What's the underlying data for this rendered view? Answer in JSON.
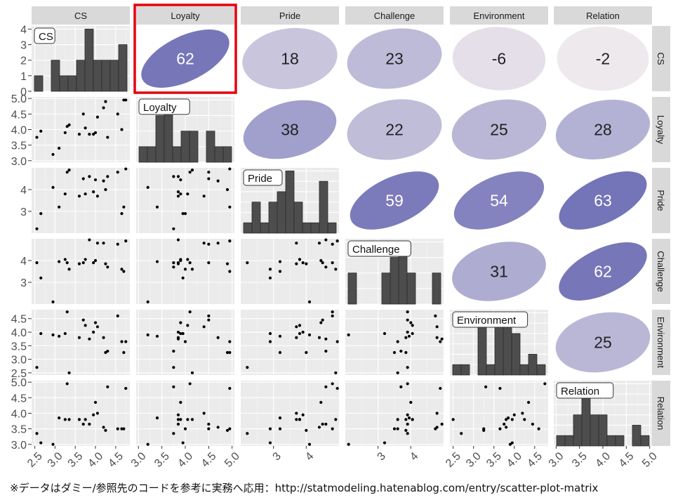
{
  "footnote": "※データはダミー/参照先のコードを参考に実務へ応用：http://statmodeling.hatenablog.com/entry/scatter-plot-matrix",
  "colors": {
    "panel_bg": "#ebebeb",
    "grid_major": "#ffffff",
    "strip_bg": "#d9d9d9",
    "bar_fill": "#4d4d4d",
    "point": "#000000",
    "ellipse_low": "#f5f0f0",
    "ellipse_high": "#7474b8",
    "highlight": "#e5000d"
  },
  "chart_data": {
    "type": "scatter",
    "variables": [
      "CS",
      "Loyalty",
      "Pride",
      "Challenge",
      "Environment",
      "Relation"
    ],
    "highlighted_cell": {
      "row": "CS",
      "col": "Loyalty"
    },
    "correlations": [
      {
        "row": "CS",
        "col": "Loyalty",
        "value": 62
      },
      {
        "row": "CS",
        "col": "Pride",
        "value": 18
      },
      {
        "row": "CS",
        "col": "Challenge",
        "value": 23
      },
      {
        "row": "CS",
        "col": "Environment",
        "value": -6
      },
      {
        "row": "CS",
        "col": "Relation",
        "value": -2
      },
      {
        "row": "Loyalty",
        "col": "Pride",
        "value": 38
      },
      {
        "row": "Loyalty",
        "col": "Challenge",
        "value": 22
      },
      {
        "row": "Loyalty",
        "col": "Environment",
        "value": 25
      },
      {
        "row": "Loyalty",
        "col": "Relation",
        "value": 28
      },
      {
        "row": "Pride",
        "col": "Challenge",
        "value": 59
      },
      {
        "row": "Pride",
        "col": "Environment",
        "value": 54
      },
      {
        "row": "Pride",
        "col": "Relation",
        "value": 63
      },
      {
        "row": "Challenge",
        "col": "Environment",
        "value": 31
      },
      {
        "row": "Challenge",
        "col": "Relation",
        "value": 62
      },
      {
        "row": "Environment",
        "col": "Relation",
        "value": 25
      }
    ],
    "axes": {
      "CS": {
        "range": [
          2.42,
          4.85
        ],
        "ticks": [
          "2.5",
          "3.0",
          "3.5",
          "4.0",
          "4.5"
        ]
      },
      "Loyalty": {
        "range": [
          2.95,
          5.05
        ],
        "ticks": [
          "3.0",
          "3.5",
          "4.0",
          "4.5",
          "5.0"
        ]
      },
      "Pride": {
        "range": [
          2.0,
          5.0
        ],
        "ticks": [
          "3",
          "4"
        ]
      },
      "Challenge": {
        "range": [
          2.0,
          5.0
        ],
        "ticks": [
          "3",
          "4"
        ]
      },
      "Environment": {
        "range": [
          2.42,
          4.83
        ],
        "ticks": [
          "2.5",
          "3.0",
          "3.5",
          "4.0",
          "4.5"
        ]
      },
      "Relation": {
        "range": [
          2.95,
          5.05
        ],
        "ticks": [
          "3.0",
          "3.5",
          "4.0",
          "4.5",
          "5.0"
        ]
      }
    },
    "histograms": {
      "CS": {
        "y_ticks": [
          "0",
          "1",
          "2",
          "3",
          "4"
        ],
        "y_range": [
          0,
          4.2
        ],
        "counts": [
          1,
          0,
          2,
          1,
          1,
          2,
          4,
          2,
          2,
          2,
          3
        ]
      },
      "Loyalty": {
        "counts": [
          1,
          1,
          3,
          4,
          1,
          2,
          2,
          0,
          2,
          1,
          1
        ]
      },
      "Pride": {
        "counts": [
          1,
          3,
          1,
          3,
          4,
          6,
          3,
          1,
          1,
          5,
          1
        ]
      },
      "Challenge": {
        "counts": [
          2,
          0,
          0,
          0,
          2,
          3,
          4,
          2,
          0,
          0,
          2
        ]
      },
      "Environment": {
        "counts": [
          1,
          1,
          0,
          5,
          1,
          5,
          6,
          4,
          1,
          2,
          1
        ]
      },
      "Relation": {
        "counts": [
          1,
          1,
          3,
          6,
          3,
          3,
          1,
          1,
          0,
          2,
          1
        ]
      }
    },
    "observations": {
      "CS": [
        2.55,
        2.65,
        2.95,
        3.1,
        3.25,
        3.3,
        3.35,
        3.6,
        3.7,
        3.75,
        3.85,
        3.95,
        4.0,
        4.05,
        4.2,
        4.25,
        4.3,
        4.55,
        4.65,
        4.7,
        4.75
      ],
      "Loyalty": [
        3.75,
        3.95,
        3.2,
        3.4,
        3.9,
        4.1,
        4.15,
        3.85,
        4.5,
        4.05,
        3.85,
        3.85,
        3.9,
        4.4,
        4.7,
        4.9,
        3.75,
        4.5,
        4.0,
        4.95,
        4.95
      ],
      "Pride": [
        2.2,
        2.9,
        4.1,
        3.2,
        3.8,
        4.8,
        4.9,
        3.7,
        4.5,
        3.8,
        4.6,
        3.9,
        4.45,
        3.7,
        4.4,
        4.0,
        4.6,
        4.8,
        2.9,
        3.2,
        4.95
      ],
      "Challenge": [
        3.9,
        3.2,
        2.1,
        3.95,
        4.05,
        3.9,
        3.6,
        3.85,
        3.9,
        4.05,
        4.95,
        3.9,
        4.0,
        4.8,
        4.8,
        3.85,
        3.7,
        4.75,
        3.6,
        3.5,
        4.9
      ],
      "Environment": [
        2.7,
        3.95,
        3.9,
        3.85,
        3.95,
        4.75,
        2.5,
        3.8,
        4.45,
        4.25,
        3.75,
        4.0,
        4.35,
        4.2,
        3.8,
        3.25,
        3.3,
        4.6,
        3.65,
        3.25,
        3.65
      ],
      "Relation": [
        3.35,
        3.05,
        3.0,
        3.85,
        3.8,
        4.95,
        3.8,
        3.8,
        3.65,
        3.8,
        3.65,
        3.95,
        4.35,
        4.0,
        3.55,
        3.45,
        4.85,
        3.5,
        3.5,
        3.5,
        4.8
      ]
    }
  }
}
